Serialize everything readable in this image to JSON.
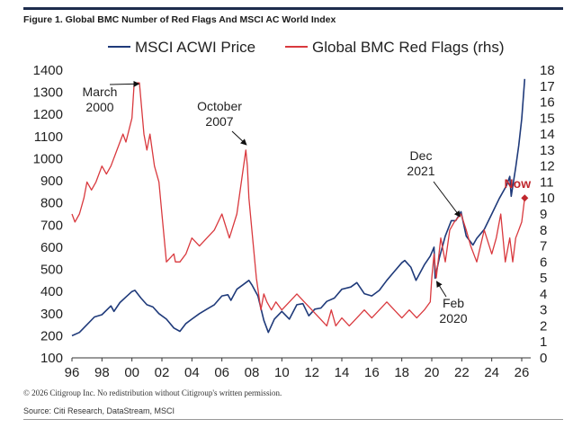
{
  "figure": {
    "title": "Figure 1. Global BMC Number of Red Flags And MSCI AC World Index",
    "copyright": "© 2026 Citigroup Inc. No redistribution without Citigroup's written permission.",
    "source": "Source: Citi Research, DataStream, MSCI"
  },
  "chart_data": {
    "type": "line",
    "title": "Figure 1. Global BMC Number of Red Flags And MSCI AC World Index",
    "xlabel": "",
    "ylabel": "",
    "y2label": "",
    "x_tick_labels": [
      "96",
      "98",
      "00",
      "02",
      "04",
      "06",
      "08",
      "10",
      "12",
      "14",
      "16",
      "18",
      "20",
      "22",
      "24",
      "26"
    ],
    "xlim": [
      1996,
      2026.6
    ],
    "ylim": [
      100,
      1400
    ],
    "y_ticks": [
      100,
      200,
      300,
      400,
      500,
      600,
      700,
      800,
      900,
      1000,
      1100,
      1200,
      1300,
      1400
    ],
    "y2lim": [
      0,
      18
    ],
    "y2_ticks": [
      0,
      1,
      2,
      3,
      4,
      5,
      6,
      7,
      8,
      9,
      10,
      11,
      12,
      13,
      14,
      15,
      16,
      17,
      18
    ],
    "grid": false,
    "legend_position": "top-center",
    "colors": {
      "msci": "#1f3a7a",
      "red_flags": "#d9393e",
      "axis": "#333333",
      "now_label": "#c0272d"
    },
    "series": [
      {
        "name": "MSCI ACWI Price",
        "axis": "left",
        "color": "#1f3a7a",
        "x": [
          1996.0,
          1996.5,
          1997.0,
          1997.5,
          1998.0,
          1998.6,
          1998.8,
          1999.2,
          1999.6,
          2000.0,
          2000.2,
          2000.6,
          2001.0,
          2001.4,
          2001.8,
          2002.3,
          2002.8,
          2003.2,
          2003.6,
          2004.0,
          2004.5,
          2005.0,
          2005.5,
          2006.0,
          2006.4,
          2006.6,
          2007.0,
          2007.4,
          2007.8,
          2008.0,
          2008.4,
          2008.8,
          2009.1,
          2009.5,
          2010.0,
          2010.5,
          2011.0,
          2011.4,
          2011.8,
          2012.2,
          2012.6,
          2013.0,
          2013.5,
          2014.0,
          2014.6,
          2015.0,
          2015.5,
          2016.0,
          2016.5,
          2017.0,
          2017.5,
          2018.0,
          2018.2,
          2018.6,
          2018.95,
          2019.5,
          2019.9,
          2020.15,
          2020.22,
          2020.5,
          2020.9,
          2021.3,
          2021.6,
          2021.95,
          2022.3,
          2022.75,
          2023.0,
          2023.5,
          2024.0,
          2024.5,
          2025.0,
          2025.2,
          2025.3,
          2025.6,
          2025.8,
          2026.0,
          2026.2
        ],
        "values": [
          200,
          215,
          250,
          285,
          295,
          335,
          310,
          350,
          375,
          400,
          405,
          370,
          340,
          330,
          300,
          275,
          235,
          220,
          255,
          275,
          300,
          320,
          340,
          380,
          385,
          360,
          410,
          430,
          450,
          430,
          380,
          270,
          215,
          275,
          310,
          275,
          340,
          345,
          290,
          320,
          325,
          355,
          370,
          410,
          420,
          440,
          390,
          380,
          405,
          450,
          490,
          530,
          540,
          510,
          450,
          520,
          560,
          600,
          460,
          550,
          650,
          720,
          720,
          760,
          650,
          610,
          640,
          680,
          750,
          820,
          880,
          920,
          830,
          960,
          1060,
          1180,
          1360
        ]
      },
      {
        "name": "Global BMC Red Flags (rhs)",
        "axis": "right",
        "color": "#d9393e",
        "x": [
          1996.0,
          1996.2,
          1996.5,
          1996.8,
          1997.0,
          1997.3,
          1997.6,
          1998.0,
          1998.3,
          1998.6,
          1999.0,
          1999.4,
          1999.6,
          2000.0,
          2000.15,
          2000.5,
          2000.8,
          2001.0,
          2001.2,
          2001.5,
          2001.8,
          2002.0,
          2002.3,
          2002.8,
          2002.9,
          2003.2,
          2003.6,
          2004.0,
          2004.5,
          2005.0,
          2005.5,
          2006.0,
          2006.5,
          2007.0,
          2007.3,
          2007.6,
          2007.7,
          2007.8,
          2008.0,
          2008.3,
          2008.6,
          2008.8,
          2009.0,
          2009.3,
          2009.6,
          2010.0,
          2010.5,
          2011.0,
          2011.5,
          2012.0,
          2012.5,
          2013.0,
          2013.3,
          2013.6,
          2014.0,
          2014.5,
          2015.0,
          2015.5,
          2016.0,
          2016.5,
          2017.0,
          2017.5,
          2018.0,
          2018.5,
          2019.0,
          2019.5,
          2019.9,
          2020.0,
          2020.15,
          2020.3,
          2020.6,
          2020.9,
          2021.2,
          2021.5,
          2021.95,
          2022.3,
          2022.6,
          2023.0,
          2023.5,
          2024.0,
          2024.3,
          2024.6,
          2024.9,
          2025.2,
          2025.4,
          2025.6,
          2025.8,
          2026.0,
          2026.2
        ],
        "values": [
          9,
          8.5,
          9,
          10,
          11,
          10.5,
          11,
          12,
          11.5,
          12,
          13,
          14,
          13.5,
          15,
          17.2,
          17.2,
          14,
          13,
          14,
          12,
          11,
          9,
          6,
          6.5,
          6,
          6,
          6.5,
          7.5,
          7,
          7.5,
          8,
          9,
          7.5,
          9,
          11,
          13,
          12,
          10,
          8,
          5,
          3,
          4,
          3.5,
          3,
          3.5,
          3,
          3.5,
          4,
          3.5,
          3,
          2.5,
          2,
          3,
          2,
          2.5,
          2,
          2.5,
          3,
          2.5,
          3,
          3.5,
          3,
          2.5,
          3,
          2.5,
          3,
          3.5,
          5,
          6.5,
          5,
          7.5,
          6,
          8,
          8.5,
          9,
          8,
          7,
          6,
          8,
          6.5,
          7.5,
          9,
          6,
          7.5,
          6,
          7.5,
          8,
          8.5,
          10
        ]
      }
    ],
    "annotations": [
      {
        "text": "March 2000",
        "lines": [
          "March",
          "2000"
        ],
        "x": 2000.1,
        "y": 17.2,
        "axis": "right"
      },
      {
        "text": "October 2007",
        "lines": [
          "October",
          "2007"
        ],
        "x": 2007.75,
        "y": 13.0,
        "axis": "right"
      },
      {
        "text": "Dec 2021",
        "lines": [
          "Dec",
          "2021"
        ],
        "x": 2022.0,
        "y": 8.5,
        "axis": "right"
      },
      {
        "text": "Feb 2020",
        "lines": [
          "Feb",
          "2020"
        ],
        "x": 2020.15,
        "y": 5.0,
        "axis": "right"
      },
      {
        "text": "Now",
        "lines": [
          "Now"
        ],
        "x": 2026.2,
        "y": 10.0,
        "axis": "right"
      }
    ]
  }
}
